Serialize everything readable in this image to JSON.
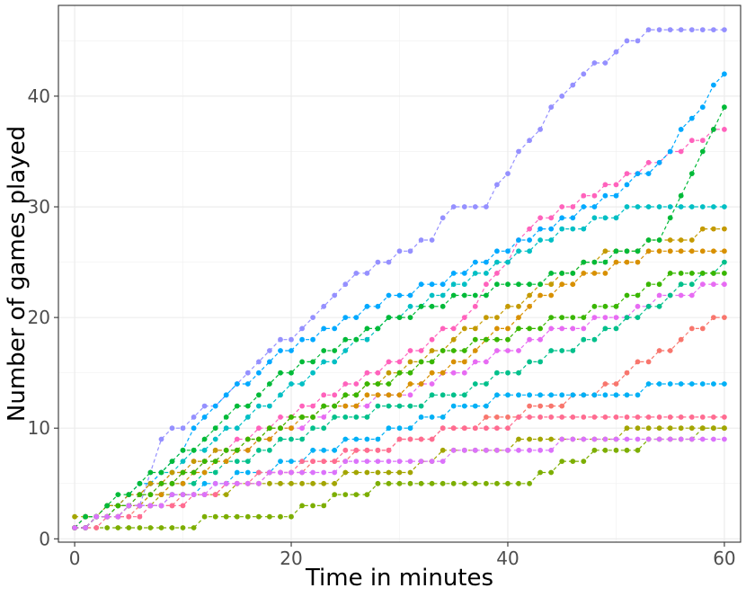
{
  "chart_data": {
    "type": "line",
    "title": "",
    "xlabel": "Time in minutes",
    "ylabel": "Number of games played",
    "xlim": [
      -1.5,
      61.5
    ],
    "ylim": [
      -0.3,
      48.2
    ],
    "xticks": [
      0,
      20,
      40,
      60
    ],
    "yticks": [
      0,
      10,
      20,
      30,
      40
    ],
    "grid": true,
    "legend": "none",
    "line_style": "dashed",
    "markers": true,
    "series": [
      {
        "color": "#9590FF",
        "x": [
          0,
          6,
          8,
          10,
          14,
          18,
          21,
          23,
          26,
          29,
          31,
          33,
          35,
          38,
          40,
          42,
          45,
          47,
          50,
          53,
          60
        ],
        "y": [
          1,
          3,
          9,
          10,
          13,
          17,
          19,
          21,
          24,
          25,
          26,
          27,
          30,
          30,
          33,
          36,
          40,
          42,
          44,
          46,
          46
        ]
      },
      {
        "color": "#E76BF3",
        "x": [
          0,
          5,
          10,
          15,
          20,
          25,
          30,
          35,
          40,
          45,
          50,
          55,
          60
        ],
        "y": [
          1,
          3,
          6,
          8,
          10,
          12,
          13,
          15,
          17,
          19,
          20,
          22,
          23
        ]
      },
      {
        "color": "#FF62BC",
        "x": [
          0,
          6,
          12,
          18,
          24,
          30,
          36,
          42,
          48,
          54,
          60
        ],
        "y": [
          1,
          4,
          7,
          10,
          13,
          16,
          20,
          28,
          31,
          34,
          37
        ]
      },
      {
        "color": "#00BFC4",
        "x": [
          0,
          5,
          10,
          16,
          22,
          28,
          34,
          40,
          46,
          52,
          60
        ],
        "y": [
          1,
          4,
          7,
          11,
          15,
          19,
          22,
          25,
          28,
          30,
          30
        ]
      },
      {
        "color": "#00A9FF",
        "x": [
          0,
          4,
          8,
          13,
          18,
          24,
          30,
          36,
          42,
          48,
          54,
          60
        ],
        "y": [
          1,
          3,
          6,
          12,
          16,
          19,
          22,
          24,
          27,
          30,
          34,
          42
        ]
      },
      {
        "color": "#7CAE00",
        "x": [
          0,
          8,
          11,
          13,
          20,
          22,
          25,
          30,
          34,
          40,
          42,
          45,
          50,
          55,
          60
        ],
        "y": [
          1,
          1,
          1,
          2,
          2,
          3,
          4,
          5,
          5,
          5,
          5,
          7,
          8,
          9,
          10
        ]
      },
      {
        "color": "#A3A500",
        "x": [
          0,
          10,
          20,
          30,
          35,
          40,
          42,
          48,
          54,
          60
        ],
        "y": [
          2,
          4,
          5,
          6,
          8,
          8,
          9,
          9,
          10,
          10
        ]
      },
      {
        "color": "#C49A00",
        "x": [
          0,
          7,
          14,
          21,
          28,
          35,
          42,
          49,
          56,
          60
        ],
        "y": [
          1,
          5,
          8,
          11,
          14,
          18,
          22,
          26,
          27,
          28
        ]
      },
      {
        "color": "#00BA38",
        "x": [
          0,
          6,
          12,
          18,
          24,
          30,
          36,
          42,
          48,
          54,
          60
        ],
        "y": [
          1,
          5,
          9,
          14,
          17,
          20,
          22,
          23,
          25,
          27,
          39
        ]
      },
      {
        "color": "#F8766D",
        "x": [
          0,
          8,
          16,
          24,
          32,
          40,
          48,
          56,
          60
        ],
        "y": [
          1,
          3,
          5,
          7,
          9,
          11,
          13,
          18,
          20
        ]
      },
      {
        "color": "#00C08B",
        "x": [
          0,
          5,
          10,
          15,
          20,
          25,
          30,
          35,
          40,
          45,
          50,
          55,
          60
        ],
        "y": [
          1,
          3,
          5,
          7,
          9,
          11,
          12,
          13,
          15,
          17,
          19,
          22,
          25
        ]
      },
      {
        "color": "#00B0F6",
        "x": [
          0,
          10,
          20,
          30,
          40,
          50,
          55,
          60
        ],
        "y": [
          1,
          4,
          7,
          10,
          13,
          13,
          14,
          14
        ]
      },
      {
        "color": "#FF6C91",
        "x": [
          0,
          9,
          18,
          27,
          36,
          45,
          54,
          60
        ],
        "y": [
          1,
          3,
          6,
          8,
          10,
          11,
          11,
          11
        ]
      },
      {
        "color": "#D89000",
        "x": [
          0,
          6,
          12,
          18,
          24,
          30,
          36,
          42,
          48,
          54,
          60
        ],
        "y": [
          1,
          3,
          6,
          9,
          12,
          13,
          16,
          21,
          24,
          26,
          26
        ]
      },
      {
        "color": "#39B600",
        "x": [
          0,
          7,
          14,
          21,
          28,
          35,
          42,
          49,
          56,
          60
        ],
        "y": [
          1,
          4,
          8,
          11,
          14,
          17,
          19,
          21,
          24,
          24
        ]
      },
      {
        "color": "#DB72FB",
        "x": [
          0,
          10,
          20,
          30,
          40,
          50,
          60
        ],
        "y": [
          1,
          4,
          6,
          7,
          8,
          9,
          9
        ]
      }
    ]
  }
}
